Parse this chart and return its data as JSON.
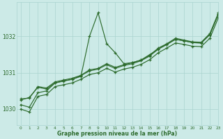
{
  "title": "Graphe pression niveau de la mer (hPa)",
  "background_color": "#cceae7",
  "grid_color": "#aad4d0",
  "line_color": "#2d6b2d",
  "xlim": [
    -0.5,
    23
  ],
  "ylim": [
    1029.55,
    1032.95
  ],
  "yticks": [
    1030,
    1031,
    1032
  ],
  "xticks": [
    0,
    1,
    2,
    3,
    4,
    5,
    6,
    7,
    8,
    9,
    10,
    11,
    12,
    13,
    14,
    15,
    16,
    17,
    18,
    19,
    20,
    21,
    22,
    23
  ],
  "series": [
    [
      1030.25,
      1030.32,
      1030.6,
      1030.55,
      1030.72,
      1030.78,
      1030.82,
      1030.9,
      1032.0,
      1032.65,
      1031.8,
      1031.55,
      1031.25,
      1031.28,
      1031.35,
      1031.5,
      1031.65,
      1031.78,
      1031.92,
      1031.88,
      1031.83,
      1031.82,
      1032.05,
      1032.62
    ],
    [
      1030.28,
      1030.3,
      1030.62,
      1030.58,
      1030.75,
      1030.8,
      1030.85,
      1030.93,
      1031.08,
      1031.12,
      1031.25,
      1031.15,
      1031.22,
      1031.28,
      1031.35,
      1031.48,
      1031.68,
      1031.8,
      1031.95,
      1031.9,
      1031.85,
      1031.84,
      1032.08,
      1032.65
    ],
    [
      1030.12,
      1030.05,
      1030.45,
      1030.5,
      1030.72,
      1030.77,
      1030.82,
      1030.92,
      1031.05,
      1031.1,
      1031.22,
      1031.12,
      1031.2,
      1031.25,
      1031.33,
      1031.46,
      1031.65,
      1031.78,
      1031.92,
      1031.88,
      1031.83,
      1031.82,
      1032.05,
      1032.62
    ],
    [
      1030.0,
      1029.92,
      1030.35,
      1030.4,
      1030.62,
      1030.67,
      1030.72,
      1030.82,
      1030.95,
      1031.0,
      1031.12,
      1031.02,
      1031.1,
      1031.15,
      1031.23,
      1031.36,
      1031.55,
      1031.68,
      1031.82,
      1031.78,
      1031.73,
      1031.72,
      1031.95,
      1032.52
    ]
  ]
}
